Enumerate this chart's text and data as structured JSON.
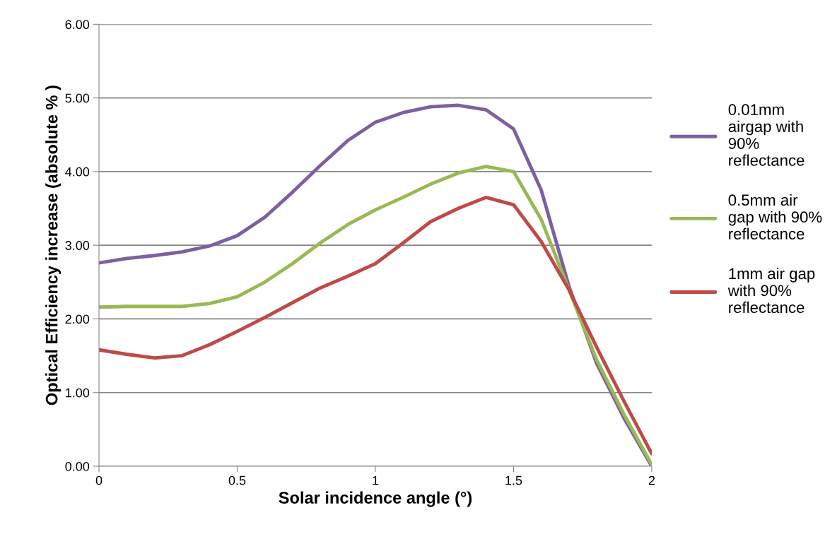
{
  "chart_data": {
    "type": "line",
    "xlabel": "Solar incidence angle (°)",
    "ylabel": "Optical Efficiency increase (absolute % )",
    "x": [
      0,
      0.1,
      0.2,
      0.3,
      0.4,
      0.5,
      0.6,
      0.7,
      0.8,
      0.9,
      1.0,
      1.1,
      1.2,
      1.3,
      1.4,
      1.5,
      1.6,
      1.7,
      1.8,
      1.9,
      2.0
    ],
    "series": [
      {
        "name": "0.01mm airgap with 90% reflectance",
        "color": "#7d60a0",
        "values": [
          2.76,
          2.82,
          2.86,
          2.91,
          2.99,
          3.13,
          3.38,
          3.72,
          4.08,
          4.42,
          4.67,
          4.8,
          4.88,
          4.9,
          4.84,
          4.58,
          3.75,
          2.45,
          1.4,
          0.65,
          0.0
        ]
      },
      {
        "name": "0.5mm air gap with 90% reflectance",
        "color": "#98b954",
        "values": [
          2.16,
          2.17,
          2.17,
          2.17,
          2.21,
          2.3,
          2.5,
          2.75,
          3.03,
          3.28,
          3.48,
          3.65,
          3.83,
          3.98,
          4.07,
          4.0,
          3.35,
          2.4,
          1.45,
          0.7,
          0.02
        ]
      },
      {
        "name": "1mm air gap with 90% reflectance",
        "color": "#be4b48",
        "values": [
          1.58,
          1.52,
          1.47,
          1.5,
          1.65,
          1.83,
          2.02,
          2.22,
          2.42,
          2.58,
          2.75,
          3.03,
          3.32,
          3.5,
          3.65,
          3.55,
          3.05,
          2.4,
          1.62,
          0.88,
          0.17
        ]
      }
    ],
    "xlim": [
      0,
      2
    ],
    "xticks": [
      0,
      0.5,
      1,
      1.5,
      2
    ],
    "ylim": [
      0,
      6
    ],
    "yticks": [
      {
        "value": 0,
        "label": "0.00"
      },
      {
        "value": 1,
        "label": "1.00"
      },
      {
        "value": 2,
        "label": "2.00"
      },
      {
        "value": 3,
        "label": "3.00"
      },
      {
        "value": 4,
        "label": "4.00"
      },
      {
        "value": 5,
        "label": "5.00"
      },
      {
        "value": 6,
        "label": "6.00"
      }
    ],
    "grid": "y",
    "legend": "right",
    "marker": "none",
    "line_style": "solid"
  }
}
